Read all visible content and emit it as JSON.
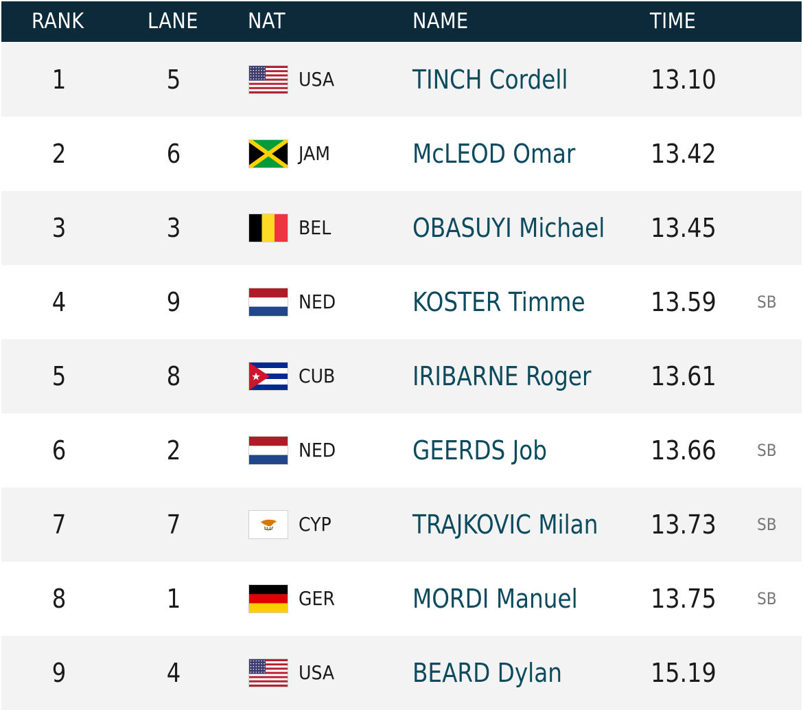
{
  "header": {
    "rank": "RANK",
    "lane": "LANE",
    "nat": "NAT",
    "name": "NAME",
    "time": "TIME"
  },
  "rows": [
    {
      "rank": "1",
      "lane": "5",
      "flag_icon": "usa-flag-icon",
      "nat": "USA",
      "name": "TINCH Cordell",
      "time": "13.10",
      "note": ""
    },
    {
      "rank": "2",
      "lane": "6",
      "flag_icon": "jamaica-flag-icon",
      "nat": "JAM",
      "name": "McLEOD Omar",
      "time": "13.42",
      "note": ""
    },
    {
      "rank": "3",
      "lane": "3",
      "flag_icon": "belgium-flag-icon",
      "nat": "BEL",
      "name": "OBASUYI Michael",
      "time": "13.45",
      "note": ""
    },
    {
      "rank": "4",
      "lane": "9",
      "flag_icon": "netherlands-flag-icon",
      "nat": "NED",
      "name": "KOSTER Timme",
      "time": "13.59",
      "note": "SB"
    },
    {
      "rank": "5",
      "lane": "8",
      "flag_icon": "cuba-flag-icon",
      "nat": "CUB",
      "name": "IRIBARNE Roger",
      "time": "13.61",
      "note": ""
    },
    {
      "rank": "6",
      "lane": "2",
      "flag_icon": "netherlands-flag-icon",
      "nat": "NED",
      "name": "GEERDS Job",
      "time": "13.66",
      "note": "SB"
    },
    {
      "rank": "7",
      "lane": "7",
      "flag_icon": "cyprus-flag-icon",
      "nat": "CYP",
      "name": "TRAJKOVIC Milan",
      "time": "13.73",
      "note": "SB"
    },
    {
      "rank": "8",
      "lane": "1",
      "flag_icon": "germany-flag-icon",
      "nat": "GER",
      "name": "MORDI Manuel",
      "time": "13.75",
      "note": "SB"
    },
    {
      "rank": "9",
      "lane": "4",
      "flag_icon": "usa-flag-icon",
      "nat": "USA",
      "name": "BEARD Dylan",
      "time": "15.19",
      "note": ""
    }
  ],
  "colors": {
    "header_bg": "#0d2a3a",
    "name_link": "#0c4a5e",
    "row_alt": "#f3f3f3"
  }
}
